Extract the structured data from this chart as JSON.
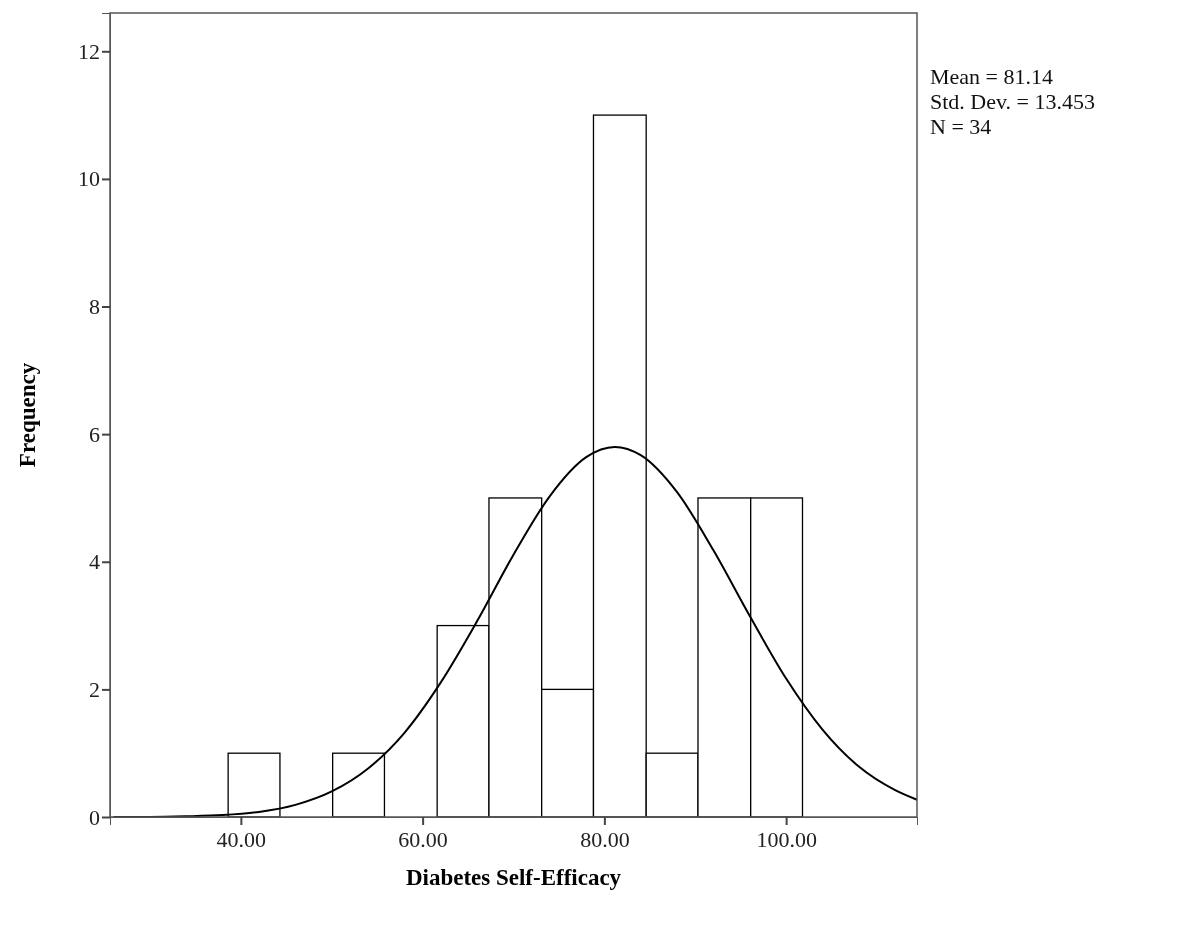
{
  "chart_data": {
    "type": "histogram",
    "xlabel": "Diabetes Self-Efficacy",
    "ylabel": "Frequency",
    "bins": [
      38.6,
      44.3,
      50.1,
      55.8,
      61.6,
      67.3,
      73.1,
      78.8,
      84.6,
      90.3,
      96.1,
      101.8
    ],
    "values": [
      1,
      0,
      1,
      0,
      3,
      5,
      2,
      11,
      1,
      5,
      5
    ],
    "color": "#ffffff",
    "series": [
      {
        "type": "line",
        "color": "#000000",
        "x": [
          26,
          30,
          34,
          38,
          42,
          46,
          50,
          54,
          58,
          62,
          66,
          70,
          74,
          78,
          81.14,
          84,
          88,
          92,
          96,
          100,
          104,
          108,
          112,
          114.4
        ],
        "values": [
          0,
          0,
          0.01,
          0.03,
          0.08,
          0.19,
          0.4,
          0.76,
          1.32,
          2.11,
          3.07,
          4.11,
          5.03,
          5.64,
          5.8,
          5.67,
          5.09,
          4.18,
          3.15,
          2.17,
          1.37,
          0.79,
          0.42,
          0.27
        ]
      }
    ],
    "xlim": [
      25.6,
      114.4
    ],
    "ylim": [
      0,
      12.6
    ],
    "xticks": [
      {
        "value": 40,
        "label": "40.00"
      },
      {
        "value": 60,
        "label": "60.00"
      },
      {
        "value": 80,
        "label": "80.00"
      },
      {
        "value": 100,
        "label": "100.00"
      }
    ],
    "yticks": [
      0,
      2,
      4,
      6,
      8,
      10,
      12
    ],
    "annotations": [
      "Mean = 81.14",
      "Std. Dev. = 13.453",
      "N = 34"
    ]
  }
}
